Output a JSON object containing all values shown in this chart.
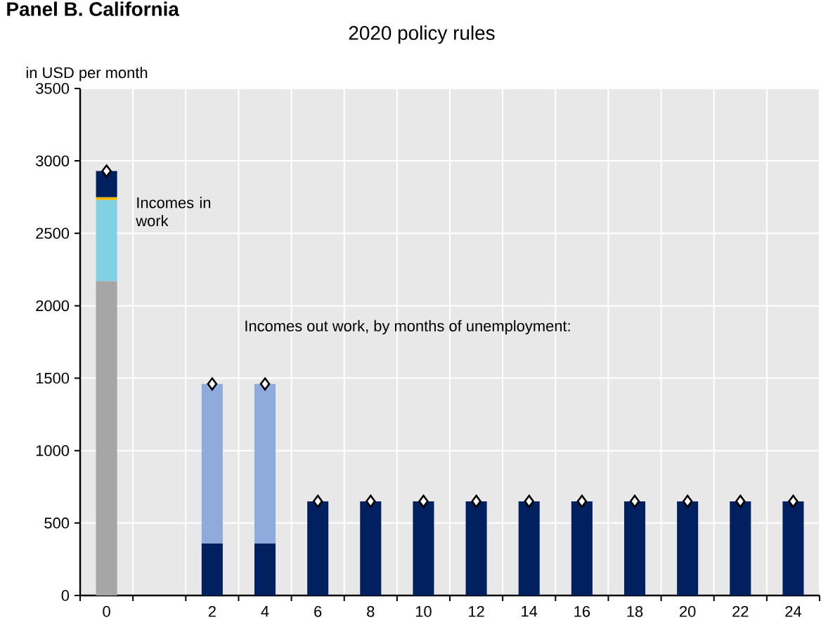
{
  "chart_data": {
    "type": "bar",
    "title": "Panel B. California",
    "subtitle": "2020 policy rules",
    "ylabel": "in USD per month",
    "categories": [
      "0",
      null,
      "2",
      "4",
      "6",
      "8",
      "10",
      "12",
      "14",
      "16",
      "18",
      "20",
      "22",
      "24"
    ],
    "stacked": true,
    "series": [
      {
        "color": "#a6a6a6",
        "values": [
          2170,
          null,
          null,
          null,
          null,
          null,
          null,
          null,
          null,
          null,
          null,
          null,
          null,
          null
        ]
      },
      {
        "color": "#7fd1e3",
        "values": [
          560,
          null,
          null,
          null,
          null,
          null,
          null,
          null,
          null,
          null,
          null,
          null,
          null,
          null
        ]
      },
      {
        "color": "#f5b800",
        "values": [
          20,
          null,
          null,
          null,
          null,
          null,
          null,
          null,
          null,
          null,
          null,
          null,
          null,
          null
        ]
      },
      {
        "color": "#002060",
        "values": [
          180,
          null,
          360,
          360,
          650,
          650,
          650,
          650,
          650,
          650,
          650,
          650,
          650,
          650
        ]
      },
      {
        "color": "#8faadc",
        "values": [
          null,
          null,
          1100,
          1100,
          null,
          null,
          null,
          null,
          null,
          null,
          null,
          null,
          null,
          null
        ]
      },
      {
        "type": "scatter",
        "marker": "diamond",
        "color": "#ffffff",
        "x": [
          "0",
          "2",
          "4",
          "6",
          "8",
          "10",
          "12",
          "14",
          "16",
          "18",
          "20",
          "22",
          "24"
        ],
        "values": [
          2930,
          1460,
          1460,
          650,
          650,
          650,
          650,
          650,
          650,
          650,
          650,
          650,
          650
        ]
      }
    ],
    "ylim": [
      0,
      3500
    ],
    "yticks": [
      0,
      500,
      1000,
      1500,
      2000,
      2500,
      3000,
      3500
    ],
    "grid": true,
    "annotations": [
      "Incomes in work",
      "Incomes out work, by months of unemployment:"
    ]
  }
}
